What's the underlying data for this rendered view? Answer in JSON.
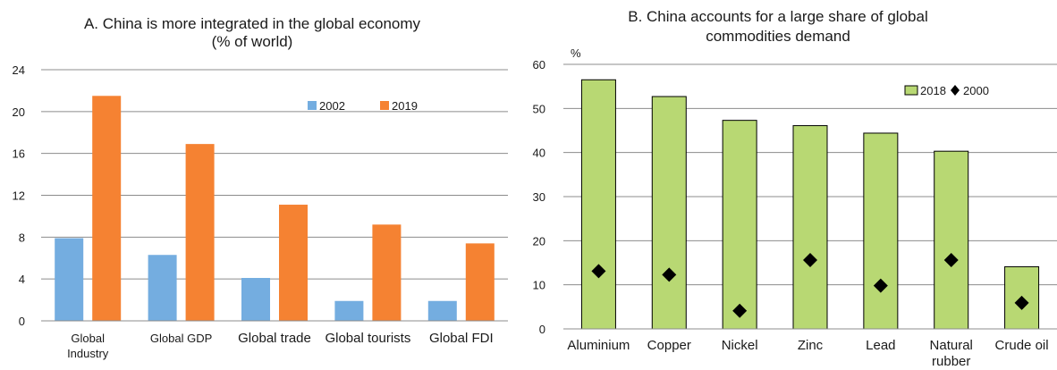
{
  "chart_data": [
    {
      "id": "A",
      "type": "bar",
      "title_line1": "A. China is more integrated in the global economy",
      "title_line2": "(% of world)",
      "ylabel": "",
      "ylim": [
        0,
        24
      ],
      "yticks": [
        0,
        4,
        8,
        12,
        16,
        20,
        24
      ],
      "categories": [
        [
          "Global",
          "Industry"
        ],
        [
          "Global GDP"
        ],
        [
          "Global trade"
        ],
        [
          "Global tourists"
        ],
        [
          "Global FDI"
        ]
      ],
      "series": [
        {
          "name": "2002",
          "color": "#74ade0",
          "values": [
            7.9,
            6.3,
            4.1,
            1.9,
            1.9
          ]
        },
        {
          "name": "2019",
          "color": "#f58232",
          "values": [
            21.5,
            16.9,
            11.1,
            9.2,
            7.4
          ]
        }
      ],
      "grid": true,
      "legend": "top-right"
    },
    {
      "id": "B",
      "type": "bar",
      "title_line1": "B. China accounts for a large share of global",
      "title_line2": "commodities demand",
      "ylabel": "%",
      "ylim": [
        0,
        60
      ],
      "yticks": [
        0,
        10,
        20,
        30,
        40,
        50,
        60
      ],
      "categories": [
        [
          "Aluminium"
        ],
        [
          "Copper"
        ],
        [
          "Nickel"
        ],
        [
          "Zinc"
        ],
        [
          "Lead"
        ],
        [
          "Natural",
          "rubber"
        ],
        [
          "Crude oil"
        ]
      ],
      "series": [
        {
          "name": "2018",
          "type": "bar",
          "color": "#b8d873",
          "values": [
            56.5,
            52.7,
            47.3,
            46.1,
            44.4,
            40.3,
            14.1
          ]
        },
        {
          "name": "2000",
          "type": "scatter",
          "marker": "diamond",
          "color": "#000000",
          "values": [
            13.1,
            12.3,
            4.1,
            15.6,
            9.8,
            15.6,
            5.9
          ]
        }
      ],
      "grid": true,
      "legend": "top-right"
    }
  ]
}
